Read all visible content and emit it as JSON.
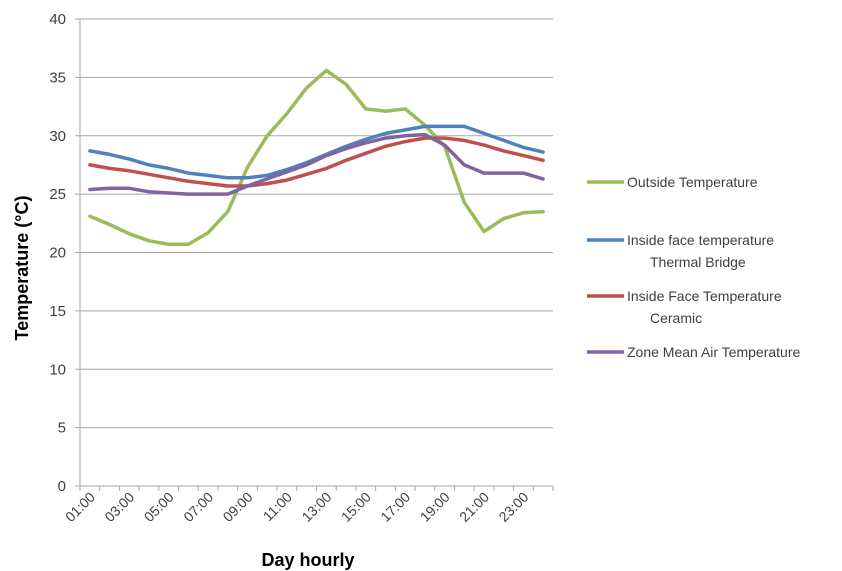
{
  "chart_data": {
    "type": "line",
    "xlabel": "Day hourly",
    "ylabel": "Temperature (°C)",
    "ylim": [
      0,
      40
    ],
    "y_ticks": [
      0,
      5,
      10,
      15,
      20,
      25,
      30,
      35,
      40
    ],
    "grid": true,
    "legend_position": "right",
    "x": [
      "01:00",
      "02:00",
      "03:00",
      "04:00",
      "05:00",
      "06:00",
      "07:00",
      "08:00",
      "09:00",
      "10:00",
      "11:00",
      "12:00",
      "13:00",
      "14:00",
      "15:00",
      "16:00",
      "17:00",
      "18:00",
      "19:00",
      "20:00",
      "21:00",
      "22:00",
      "23:00",
      "24:00"
    ],
    "x_tick_labels": [
      "01:00",
      "03:00",
      "05:00",
      "07:00",
      "09:00",
      "11:00",
      "13:00",
      "15:00",
      "17:00",
      "19:00",
      "21:00",
      "23:00"
    ],
    "series": [
      {
        "name": "Outside Temperature",
        "color": "#9bbb59",
        "values": [
          23.1,
          22.4,
          21.6,
          21.0,
          20.7,
          20.7,
          21.7,
          23.5,
          27.3,
          30.0,
          31.9,
          34.1,
          35.6,
          34.4,
          32.3,
          32.1,
          32.3,
          30.9,
          29.1,
          24.3,
          21.8,
          22.9,
          23.4,
          23.5
        ]
      },
      {
        "name": "Inside face temperature Thermal Bridge",
        "legend_lines": [
          "Inside face temperature",
          "Thermal Bridge"
        ],
        "color": "#4f81bd",
        "values": [
          28.7,
          28.4,
          28.0,
          27.5,
          27.2,
          26.8,
          26.6,
          26.4,
          26.4,
          26.6,
          27.1,
          27.7,
          28.4,
          29.1,
          29.7,
          30.2,
          30.5,
          30.8,
          30.8,
          30.8,
          30.2,
          29.6,
          29.0,
          28.6
        ]
      },
      {
        "name": "Inside Face Temperature Ceramic",
        "legend_lines": [
          "Inside Face Temperature",
          "Ceramic"
        ],
        "color": "#c0504d",
        "values": [
          27.5,
          27.2,
          27.0,
          26.7,
          26.4,
          26.1,
          25.9,
          25.7,
          25.7,
          25.9,
          26.2,
          26.7,
          27.2,
          27.9,
          28.5,
          29.1,
          29.5,
          29.8,
          29.8,
          29.6,
          29.2,
          28.7,
          28.3,
          27.9
        ]
      },
      {
        "name": "Zone Mean Air Temperature",
        "color": "#8064a2",
        "values": [
          25.4,
          25.5,
          25.5,
          25.2,
          25.1,
          25.0,
          25.0,
          25.0,
          25.7,
          26.3,
          26.9,
          27.5,
          28.3,
          28.9,
          29.4,
          29.8,
          30.0,
          30.1,
          29.2,
          27.5,
          26.8,
          26.8,
          26.8,
          26.3
        ]
      }
    ]
  }
}
